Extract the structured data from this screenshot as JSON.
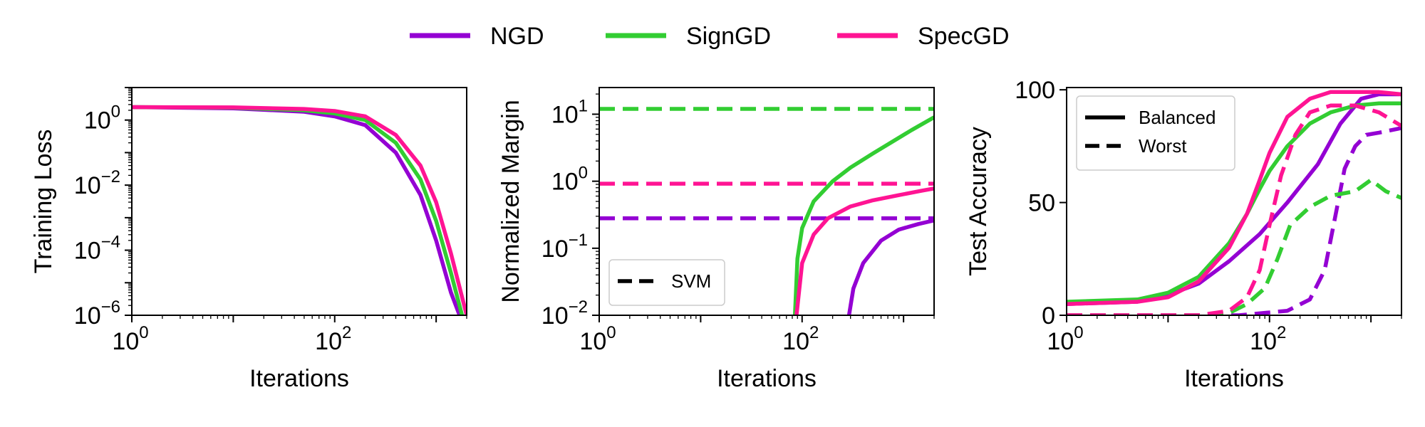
{
  "colors": {
    "NGD": "#9400D3",
    "SignGD": "#32CD32",
    "SpecGD": "#FF1493"
  },
  "legend": {
    "items": [
      {
        "name": "NGD",
        "color": "#9400D3"
      },
      {
        "name": "SignGD",
        "color": "#32CD32"
      },
      {
        "name": "SpecGD",
        "color": "#FF1493"
      }
    ]
  },
  "chart_data": [
    {
      "type": "line",
      "title": "",
      "xlabel": "Iterations",
      "ylabel": "Training Loss",
      "xscale": "log",
      "yscale": "log",
      "xlim": [
        1,
        2000
      ],
      "ylim": [
        1e-06,
        10
      ],
      "xticks": [
        {
          "value": 1,
          "base": "10",
          "exp": "0"
        },
        {
          "value": 100,
          "base": "10",
          "exp": "2"
        }
      ],
      "yticks": [
        {
          "value": 1,
          "base": "10",
          "exp": "0"
        },
        {
          "value": 0.01,
          "base": "10",
          "exp": "−2"
        },
        {
          "value": 0.0001,
          "base": "10",
          "exp": "−4"
        },
        {
          "value": 1e-06,
          "base": "10",
          "exp": "−6"
        }
      ],
      "series": [
        {
          "name": "NGD",
          "style": "solid",
          "x": [
            1,
            10,
            50,
            100,
            200,
            400,
            700,
            1000,
            1400,
            1700
          ],
          "y": [
            2.5,
            2.3,
            1.8,
            1.3,
            0.7,
            0.1,
            0.005,
            0.0002,
            5e-06,
            1e-06
          ]
        },
        {
          "name": "SignGD",
          "style": "solid",
          "x": [
            1,
            10,
            50,
            100,
            200,
            400,
            700,
            1000,
            1400,
            1800
          ],
          "y": [
            2.5,
            2.4,
            2.0,
            1.6,
            1.0,
            0.2,
            0.015,
            0.0008,
            2e-05,
            1e-06
          ]
        },
        {
          "name": "SpecGD",
          "style": "solid",
          "x": [
            1,
            10,
            50,
            100,
            200,
            400,
            700,
            1000,
            1400,
            2000
          ],
          "y": [
            2.5,
            2.45,
            2.2,
            1.9,
            1.3,
            0.35,
            0.04,
            0.003,
            8e-05,
            1e-06
          ]
        }
      ],
      "legend": null
    },
    {
      "type": "line",
      "title": "",
      "xlabel": "Iterations",
      "ylabel": "Normalized Margin",
      "xscale": "log",
      "yscale": "log",
      "xlim": [
        1,
        2000
      ],
      "ylim": [
        0.01,
        25
      ],
      "xticks": [
        {
          "value": 1,
          "base": "10",
          "exp": "0"
        },
        {
          "value": 100,
          "base": "10",
          "exp": "2"
        }
      ],
      "yticks": [
        {
          "value": 10,
          "base": "10",
          "exp": "1"
        },
        {
          "value": 1,
          "base": "10",
          "exp": "0"
        },
        {
          "value": 0.1,
          "base": "10",
          "exp": "−1"
        },
        {
          "value": 0.01,
          "base": "10",
          "exp": "−2"
        }
      ],
      "series": [
        {
          "name": "SignGD SVM",
          "color_key": "SignGD",
          "style": "dashed",
          "x": [
            1,
            2000
          ],
          "y": [
            12,
            12
          ]
        },
        {
          "name": "SpecGD SVM",
          "color_key": "SpecGD",
          "style": "dashed",
          "x": [
            1,
            2000
          ],
          "y": [
            0.92,
            0.92
          ]
        },
        {
          "name": "NGD SVM",
          "color_key": "NGD",
          "style": "dashed",
          "x": [
            1,
            2000
          ],
          "y": [
            0.28,
            0.28
          ]
        },
        {
          "name": "SignGD",
          "color_key": "SignGD",
          "style": "solid",
          "x": [
            85,
            90,
            100,
            130,
            200,
            300,
            500,
            800,
            1200,
            2000
          ],
          "y": [
            0.01,
            0.07,
            0.2,
            0.5,
            1.0,
            1.6,
            2.6,
            4.0,
            5.8,
            9.0
          ]
        },
        {
          "name": "SpecGD",
          "color_key": "SpecGD",
          "style": "solid",
          "x": [
            88,
            100,
            130,
            180,
            300,
            500,
            900,
            1500,
            2000
          ],
          "y": [
            0.01,
            0.06,
            0.16,
            0.28,
            0.42,
            0.52,
            0.62,
            0.72,
            0.78
          ]
        },
        {
          "name": "NGD",
          "color_key": "NGD",
          "style": "solid",
          "x": [
            290,
            320,
            400,
            600,
            900,
            1400,
            2000
          ],
          "y": [
            0.01,
            0.025,
            0.06,
            0.13,
            0.19,
            0.23,
            0.26
          ]
        }
      ],
      "legend": {
        "position": "lower-left",
        "entries": [
          {
            "label": "SVM",
            "style": "dashed"
          }
        ]
      }
    },
    {
      "type": "line",
      "title": "",
      "xlabel": "Iterations",
      "ylabel": "Test Accuracy",
      "xscale": "log",
      "yscale": "linear",
      "xlim": [
        1,
        2000
      ],
      "ylim": [
        0,
        101
      ],
      "xticks": [
        {
          "value": 1,
          "base": "10",
          "exp": "0"
        },
        {
          "value": 100,
          "base": "10",
          "exp": "2"
        }
      ],
      "yticks": [
        {
          "value": 0,
          "label": "0"
        },
        {
          "value": 50,
          "label": "50"
        },
        {
          "value": 100,
          "label": "100"
        }
      ],
      "series": [
        {
          "name": "NGD Balanced",
          "color_key": "NGD",
          "style": "solid",
          "x": [
            1,
            5,
            10,
            20,
            40,
            80,
            150,
            300,
            500,
            800,
            1200,
            2000
          ],
          "y": [
            5,
            6,
            9,
            14,
            24,
            36,
            50,
            67,
            85,
            96,
            98,
            98
          ]
        },
        {
          "name": "SignGD Balanced",
          "color_key": "SignGD",
          "style": "solid",
          "x": [
            1,
            5,
            10,
            20,
            40,
            60,
            80,
            100,
            150,
            250,
            400,
            700,
            1200,
            2000
          ],
          "y": [
            6,
            7,
            10,
            17,
            32,
            45,
            56,
            64,
            75,
            85,
            90,
            93,
            94,
            94
          ]
        },
        {
          "name": "SpecGD Balanced",
          "color_key": "SpecGD",
          "style": "solid",
          "x": [
            1,
            5,
            10,
            20,
            40,
            60,
            80,
            100,
            150,
            250,
            400,
            700,
            1200,
            2000
          ],
          "y": [
            5,
            6,
            8,
            15,
            30,
            45,
            60,
            72,
            88,
            96,
            99,
            99,
            99,
            98
          ]
        },
        {
          "name": "NGD Worst",
          "color_key": "NGD",
          "style": "dashed",
          "x": [
            1,
            50,
            150,
            250,
            350,
            450,
            550,
            700,
            900,
            1200,
            2000
          ],
          "y": [
            0,
            0,
            2,
            7,
            20,
            45,
            65,
            75,
            80,
            81,
            83
          ]
        },
        {
          "name": "SignGD Worst",
          "color_key": "SignGD",
          "style": "dashed",
          "x": [
            1,
            20,
            40,
            60,
            90,
            120,
            160,
            250,
            400,
            700,
            1000,
            1400,
            2000
          ],
          "y": [
            0,
            0,
            1,
            5,
            12,
            25,
            40,
            48,
            53,
            55,
            60,
            55,
            52
          ]
        },
        {
          "name": "SpecGD Worst",
          "color_key": "SpecGD",
          "style": "dashed",
          "x": [
            1,
            20,
            40,
            60,
            80,
            100,
            130,
            180,
            250,
            400,
            700,
            1200,
            2000
          ],
          "y": [
            0,
            0,
            2,
            8,
            20,
            40,
            62,
            80,
            90,
            93,
            93,
            90,
            84
          ]
        }
      ],
      "legend": {
        "position": "upper-left",
        "entries": [
          {
            "label": "Balanced",
            "style": "solid"
          },
          {
            "label": "Worst",
            "style": "dashed"
          }
        ]
      }
    }
  ]
}
